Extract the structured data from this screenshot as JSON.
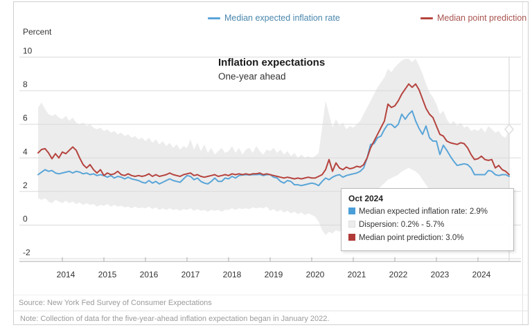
{
  "legend": [
    {
      "label": "Median expected inflation rate",
      "color": "#59a5d8"
    },
    {
      "label": "Median point prediction",
      "color": "#b5433e"
    }
  ],
  "axis": {
    "unit_label": "Percent",
    "y_ticks": [
      10,
      8,
      6,
      4,
      2,
      0,
      -2
    ],
    "x_years": [
      2014,
      2015,
      2016,
      2017,
      2018,
      2019,
      2020,
      2021,
      2022,
      2023,
      2024
    ]
  },
  "titles": {
    "title": "Inflation expectations",
    "subtitle": "One-year ahead"
  },
  "tooltip": {
    "title": "Oct 2024",
    "rows": [
      {
        "swatch": "#4a9fd8",
        "label": "Median expected inflation rate: 2.9%"
      },
      {
        "swatch": "#ededed",
        "label": "Dispersion: 0.2% - 5.7%"
      },
      {
        "swatch": "#b03a38",
        "label": "Median point prediction: 3.0%"
      }
    ]
  },
  "footer": {
    "source": "Source: New York Fed Survey of Consumer Expectations",
    "note": "Note: Collection of data for the five-year-ahead inflation expectation began in January 2022."
  },
  "colors": {
    "blue_line": "#59a5d8",
    "red_line": "#b5433e",
    "band_fill": "#ececec",
    "gridline": "#d9d9d9",
    "axis_line": "#ababab",
    "hover_line": "#d0d0d0",
    "marker_fill": "#fdfdfd",
    "marker_stroke": "#dedede",
    "tick_text": "#333333"
  },
  "chart_data": {
    "type": "line",
    "title": "Inflation expectations",
    "subtitle": "One-year ahead",
    "ylabel": "Percent",
    "ylim": [
      -2,
      10
    ],
    "x_interval": "monthly",
    "x_start": "2013-06",
    "x_end": "2024-10",
    "grid": true,
    "legend_position": "top",
    "hover": {
      "x_label": "Oct 2024",
      "median_expected": 2.9,
      "dispersion_low": 0.2,
      "dispersion_high": 5.7,
      "median_point": 3.0
    },
    "band": {
      "name": "Dispersion",
      "top": [
        7.0,
        7.3,
        6.9,
        6.6,
        6.5,
        6.6,
        6.4,
        6.3,
        6.5,
        6.2,
        6.4,
        6.1,
        6.0,
        6.1,
        5.9,
        6.0,
        5.8,
        5.7,
        5.8,
        5.6,
        5.7,
        5.5,
        5.6,
        5.4,
        5.5,
        5.3,
        5.4,
        5.2,
        5.3,
        5.1,
        5.2,
        5.0,
        5.2,
        4.9,
        5.1,
        4.8,
        5.0,
        4.7,
        4.9,
        4.6,
        4.8,
        4.5,
        4.7,
        4.6,
        5.1,
        4.5,
        4.9,
        4.4,
        4.8,
        4.3,
        4.6,
        4.2,
        4.4,
        4.6,
        4.3,
        4.4,
        4.7,
        4.3,
        4.6,
        4.2,
        4.5,
        4.6,
        4.3,
        4.7,
        4.4,
        4.2,
        4.5,
        4.4,
        4.6,
        4.3,
        4.5,
        4.2,
        4.4,
        4.1,
        4.3,
        4.0,
        4.2,
        4.0,
        4.1,
        4.0,
        4.1,
        4.3,
        5.8,
        7.4,
        6.6,
        5.8,
        6.3,
        5.9,
        6.1,
        5.7,
        5.9,
        5.8,
        6.0,
        6.2,
        6.6,
        7.0,
        7.4,
        7.8,
        8.2,
        8.5,
        8.8,
        9.3,
        9.1,
        9.4,
        9.6,
        9.8,
        9.9,
        9.9,
        9.7,
        9.9,
        9.5,
        9.0,
        8.4,
        7.9,
        7.6,
        7.2,
        6.6,
        6.8,
        6.3,
        6.0,
        6.2,
        5.9,
        6.1,
        5.8,
        5.9,
        5.6,
        5.7,
        5.6,
        5.8,
        5.5,
        5.9,
        5.7,
        5.5,
        5.6,
        5.3,
        5.2,
        5.7
      ],
      "bottom": [
        1.6,
        1.5,
        1.6,
        1.4,
        1.3,
        1.5,
        1.4,
        1.3,
        1.45,
        1.3,
        1.4,
        1.25,
        1.35,
        1.2,
        1.3,
        1.2,
        1.25,
        1.1,
        1.2,
        1.15,
        1.25,
        1.1,
        1.2,
        1.1,
        1.15,
        1.05,
        1.1,
        1.0,
        1.1,
        1.0,
        1.05,
        1.0,
        1.1,
        0.95,
        1.05,
        0.9,
        1.0,
        0.9,
        1.0,
        0.9,
        0.95,
        0.85,
        0.95,
        0.9,
        1.0,
        0.85,
        0.95,
        0.85,
        0.9,
        0.8,
        0.9,
        0.85,
        0.9,
        0.8,
        0.9,
        0.9,
        1.0,
        0.9,
        1.0,
        0.95,
        1.0,
        0.95,
        1.05,
        1.0,
        1.05,
        1.0,
        1.1,
        0.85,
        0.95,
        0.8,
        0.9,
        0.75,
        0.85,
        0.7,
        0.8,
        0.65,
        0.75,
        0.6,
        0.7,
        0.6,
        0.5,
        0.2,
        -0.3,
        -0.6,
        -0.4,
        -0.5,
        -0.3,
        -0.4,
        -0.2,
        -0.3,
        -0.1,
        0.0,
        0.1,
        0.3,
        0.6,
        1.0,
        1.4,
        1.8,
        2.1,
        2.3,
        2.5,
        2.7,
        2.8,
        2.9,
        3.0,
        3.2,
        3.3,
        3.4,
        3.3,
        3.2,
        3.0,
        2.7,
        2.4,
        2.1,
        1.9,
        1.6,
        1.3,
        1.4,
        1.1,
        1.0,
        1.05,
        0.9,
        1.0,
        0.85,
        0.9,
        0.7,
        0.8,
        0.6,
        0.7,
        0.5,
        0.6,
        0.45,
        0.5,
        0.4,
        0.35,
        0.3,
        0.2
      ]
    },
    "series": [
      {
        "name": "Median expected inflation rate",
        "values": [
          3.0,
          3.15,
          3.3,
          3.2,
          3.25,
          3.1,
          3.05,
          3.1,
          3.15,
          3.2,
          3.1,
          3.2,
          3.15,
          3.05,
          3.1,
          3.0,
          3.05,
          2.95,
          3.0,
          2.95,
          2.85,
          2.95,
          2.8,
          2.9,
          2.85,
          2.75,
          2.85,
          2.75,
          2.7,
          2.65,
          2.55,
          2.5,
          2.65,
          2.5,
          2.6,
          2.45,
          2.55,
          2.65,
          2.75,
          2.65,
          2.6,
          2.55,
          2.75,
          2.95,
          2.9,
          2.7,
          2.8,
          2.6,
          2.5,
          2.45,
          2.6,
          2.8,
          2.6,
          2.6,
          2.8,
          2.75,
          2.9,
          2.8,
          2.95,
          2.98,
          3.0,
          2.98,
          3.0,
          3.0,
          3.02,
          2.95,
          3.0,
          3.0,
          2.85,
          2.8,
          2.6,
          2.5,
          2.65,
          2.6,
          2.4,
          2.4,
          2.35,
          2.4,
          2.45,
          2.5,
          2.45,
          2.35,
          2.6,
          2.8,
          2.7,
          2.85,
          2.95,
          3.0,
          2.85,
          2.95,
          3.0,
          3.05,
          3.1,
          3.2,
          3.4,
          4.0,
          4.8,
          4.85,
          5.2,
          5.3,
          5.7,
          6.0,
          6.0,
          5.8,
          6.0,
          6.6,
          6.3,
          6.6,
          6.8,
          6.2,
          5.75,
          5.4,
          5.9,
          5.2,
          5.0,
          5.0,
          4.2,
          4.75,
          4.45,
          4.1,
          3.8,
          3.55,
          3.6,
          3.65,
          3.6,
          3.4,
          3.0,
          3.0,
          3.0,
          3.0,
          3.25,
          3.2,
          3.0,
          2.95,
          3.0,
          3.0,
          2.9
        ]
      },
      {
        "name": "Median point prediction",
        "values": [
          4.3,
          4.5,
          4.55,
          4.3,
          3.95,
          4.25,
          4.0,
          4.35,
          4.25,
          4.45,
          4.65,
          4.45,
          4.0,
          3.6,
          3.4,
          3.6,
          3.3,
          3.1,
          3.3,
          2.95,
          3.1,
          3.0,
          3.05,
          3.2,
          3.0,
          2.95,
          3.05,
          2.95,
          2.9,
          2.95,
          2.9,
          2.95,
          3.05,
          2.9,
          3.0,
          2.9,
          2.95,
          3.0,
          3.1,
          3.0,
          2.95,
          2.9,
          3.0,
          3.05,
          3.1,
          2.95,
          3.0,
          2.9,
          2.85,
          2.9,
          2.95,
          3.0,
          2.9,
          2.95,
          3.0,
          2.95,
          3.05,
          3.0,
          3.05,
          3.0,
          3.05,
          3.0,
          3.05,
          3.05,
          3.1,
          3.0,
          3.05,
          3.0,
          2.95,
          2.9,
          2.85,
          2.8,
          2.85,
          2.8,
          2.75,
          2.8,
          2.75,
          2.8,
          2.85,
          2.8,
          2.8,
          2.9,
          3.0,
          3.3,
          3.9,
          3.2,
          3.7,
          3.4,
          3.3,
          3.45,
          3.35,
          3.4,
          3.5,
          3.45,
          3.6,
          4.0,
          4.6,
          5.0,
          5.4,
          5.8,
          6.2,
          7.2,
          7.0,
          7.1,
          7.4,
          7.8,
          8.1,
          8.4,
          8.2,
          8.4,
          8.05,
          7.5,
          6.95,
          6.6,
          6.4,
          5.9,
          5.4,
          5.3,
          5.0,
          4.9,
          4.85,
          4.8,
          4.9,
          4.85,
          4.6,
          4.2,
          3.9,
          3.95,
          4.1,
          3.9,
          3.85,
          3.9,
          3.4,
          3.55,
          3.3,
          3.2,
          3.0
        ]
      }
    ]
  }
}
